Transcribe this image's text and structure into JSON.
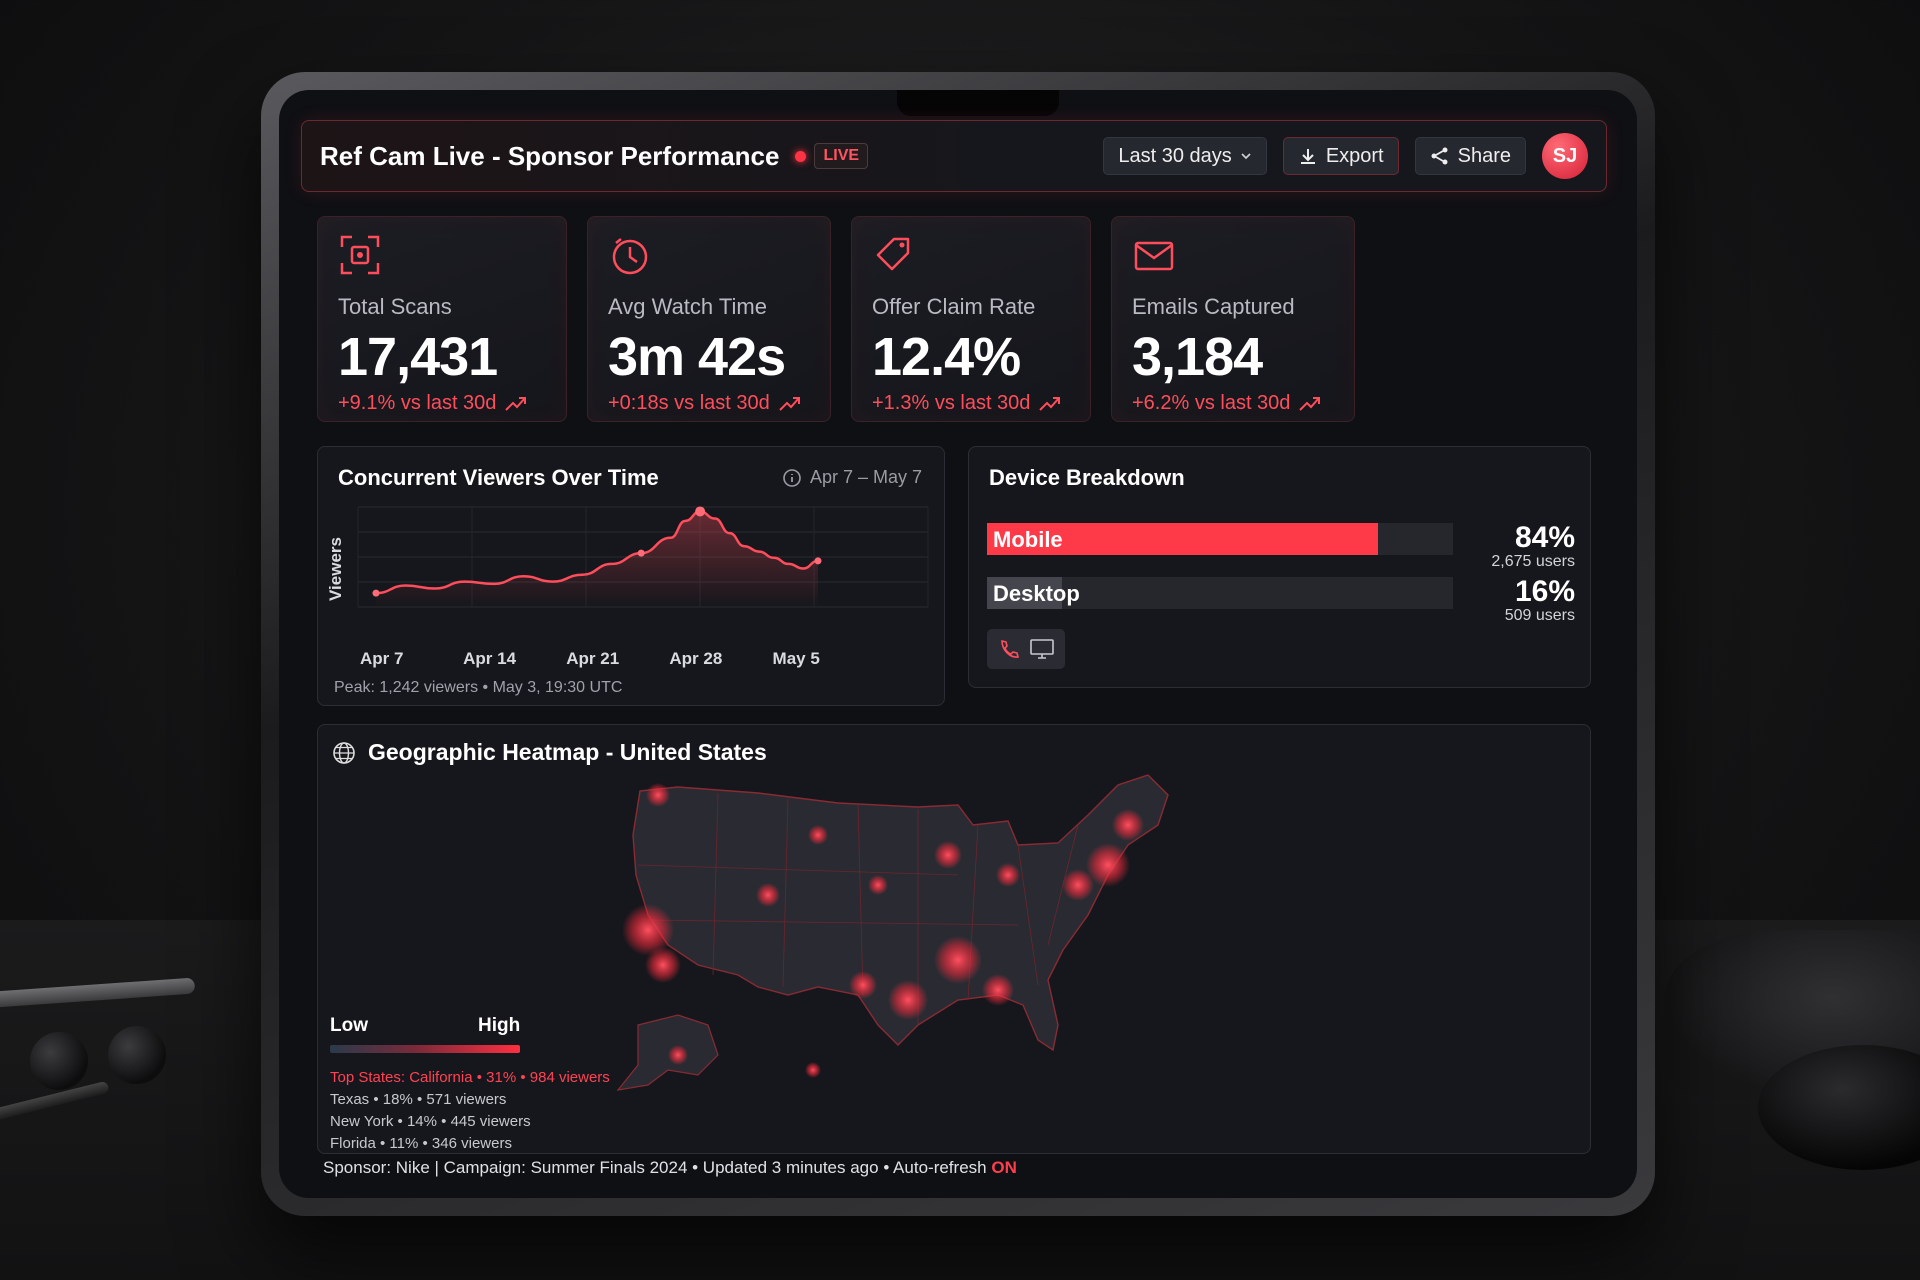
{
  "header": {
    "title": "Ref Cam Live - Sponsor Performance",
    "live_label": "LIVE",
    "date_range": "Last 30 days",
    "export_label": "Export",
    "share_label": "Share",
    "avatar_initials": "SJ"
  },
  "kpis": [
    {
      "icon": "qr-scan-icon",
      "label": "Total Scans",
      "value": "17,431",
      "delta": "+9.1% vs last 30d"
    },
    {
      "icon": "clock-icon",
      "label": "Avg Watch Time",
      "value": "3m 42s",
      "delta": "+0:18s vs last 30d"
    },
    {
      "icon": "tag-icon",
      "label": "Offer Claim Rate",
      "value": "12.4%",
      "delta": "+1.3% vs last 30d"
    },
    {
      "icon": "mail-icon",
      "label": "Emails Captured",
      "value": "3,184",
      "delta": "+6.2% vs last 30d"
    }
  ],
  "viewers_chart": {
    "title": "Concurrent Viewers Over Time",
    "range": "Apr 7 – May 7",
    "peak_note": "Peak: 1,242 viewers • May 3, 19:30 UTC"
  },
  "chart_data": {
    "type": "line",
    "ylabel": "Viewers",
    "xticks": [
      "Apr 7",
      "Apr 14",
      "Apr 21",
      "Apr 28",
      "May 5"
    ],
    "x": [
      0,
      2,
      4,
      6,
      8,
      10,
      12,
      14,
      16,
      18,
      20,
      21,
      22,
      23,
      24,
      25,
      26,
      27,
      28,
      29,
      30
    ],
    "y": [
      180,
      280,
      240,
      330,
      300,
      400,
      330,
      420,
      560,
      700,
      900,
      1120,
      1242,
      1150,
      960,
      790,
      720,
      640,
      560,
      500,
      600
    ],
    "markers": [
      0,
      9,
      12,
      20
    ],
    "colors": {
      "line": "#ff4d5c"
    }
  },
  "device": {
    "title": "Device Breakdown",
    "rows": [
      {
        "name": "Mobile",
        "pct": "84%",
        "fraction": 0.84,
        "users": "2,675 users",
        "color": "#ff3a48"
      },
      {
        "name": "Desktop",
        "pct": "16%",
        "fraction": 0.16,
        "users": "509 users",
        "color": "#45464d"
      }
    ]
  },
  "map": {
    "title": "Geographic Heatmap - United States",
    "legend_low": "Low",
    "legend_high": "High",
    "top_states": "Top States: California • 31% • 984 viewers",
    "states": [
      "Texas • 18% • 571 viewers",
      "New York • 14% • 445 viewers",
      "Florida • 11% • 346 viewers"
    ]
  },
  "footer": {
    "text": "Sponsor: Nike | Campaign: Summer Finals 2024 • Updated 3 minutes ago • Auto-refresh",
    "status": "ON"
  }
}
